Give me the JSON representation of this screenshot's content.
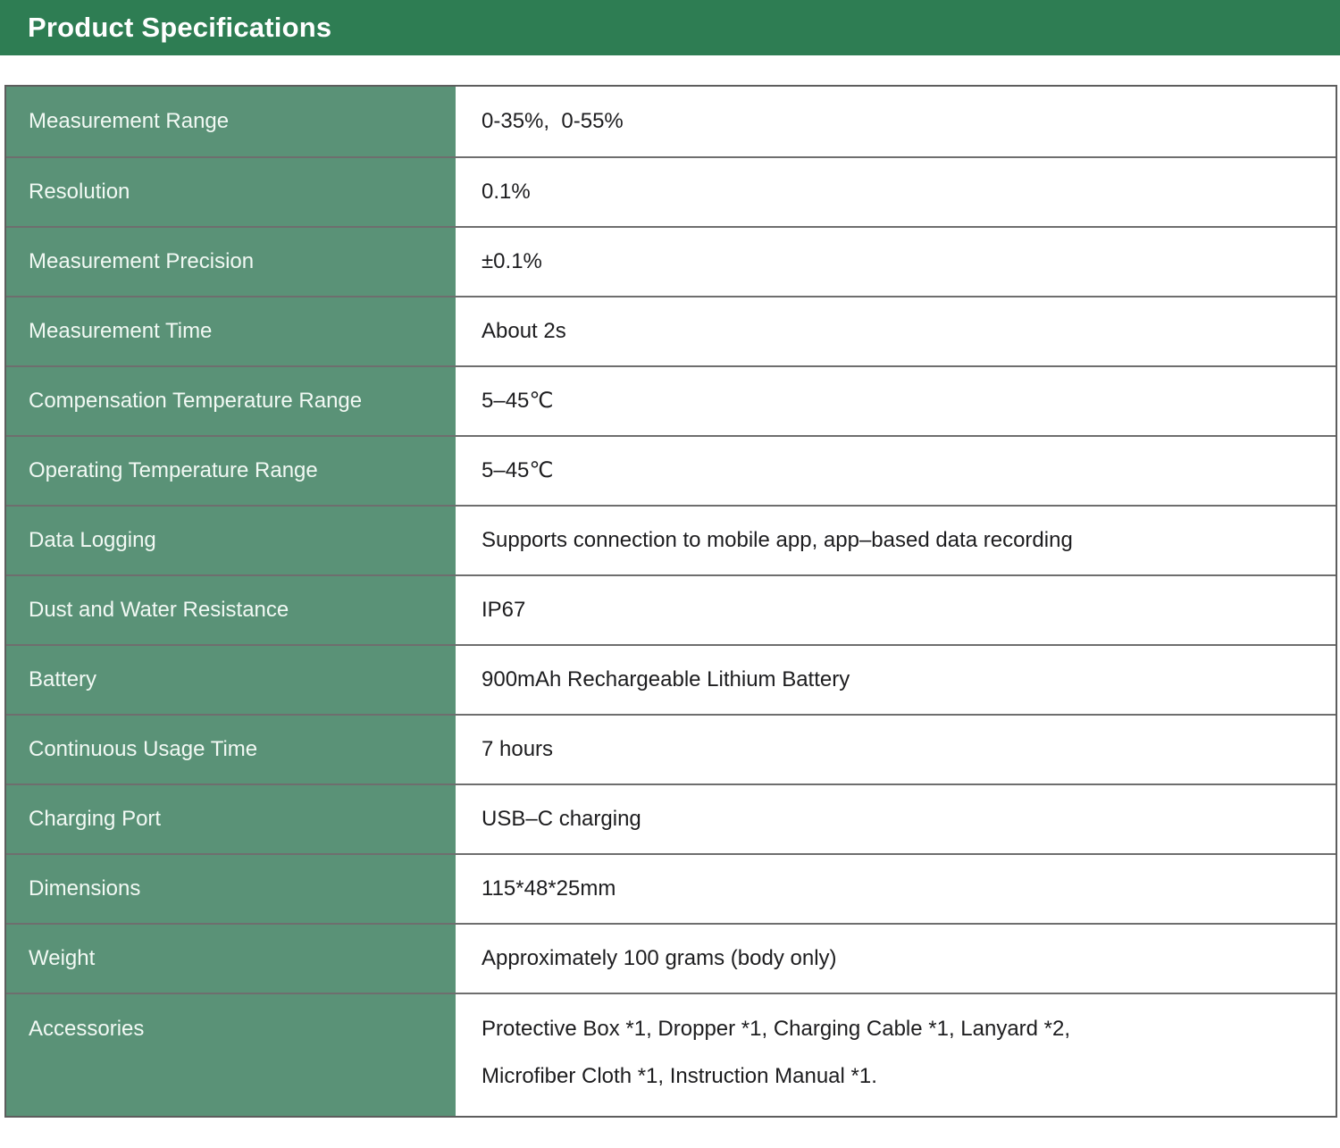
{
  "header": {
    "title": "Product Specifications"
  },
  "colors": {
    "titlebar_bg": "#2e7d53",
    "label_column_bg": "#5a9277",
    "row_divider": "#6e6e6e",
    "table_border": "#5d5d5d",
    "label_text": "#f2f9f4",
    "value_text": "#1d1d1f"
  },
  "table": {
    "rows": [
      {
        "label": "Measurement Range",
        "value": "0-35%,  0-55%"
      },
      {
        "label": "Resolution",
        "value": "0.1%"
      },
      {
        "label": "Measurement Precision",
        "value": "±0.1%"
      },
      {
        "label": "Measurement Time",
        "value": "About 2s"
      },
      {
        "label": "Compensation Temperature Range",
        "value": "5–45℃"
      },
      {
        "label": "Operating Temperature Range",
        "value": "5–45℃"
      },
      {
        "label": "Data Logging",
        "value": "Supports connection to mobile app, app–based data recording"
      },
      {
        "label": "Dust and Water Resistance",
        "value": "IP67"
      },
      {
        "label": "Battery",
        "value": "900mAh Rechargeable Lithium Battery"
      },
      {
        "label": "Continuous Usage Time",
        "value": "7 hours"
      },
      {
        "label": "Charging Port",
        "value": "USB–C charging"
      },
      {
        "label": "Dimensions",
        "value": "115*48*25mm"
      },
      {
        "label": "Weight",
        "value": "Approximately 100 grams (body only)"
      },
      {
        "label": "Accessories",
        "value": "Protective Box *1, Dropper *1, Charging Cable *1, Lanyard *2,\nMicrofiber Cloth *1, Instruction Manual *1.",
        "tall": true
      }
    ]
  }
}
